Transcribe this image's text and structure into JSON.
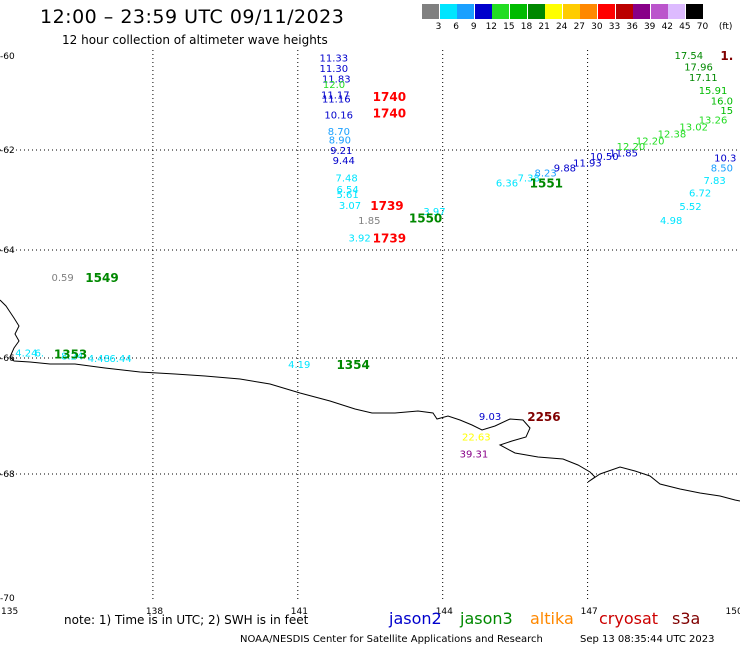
{
  "header": {
    "title": "12:00 – 23:59 UTC 09/11/2023",
    "subtitle": "12 hour collection of altimeter wave heights"
  },
  "color_scale": {
    "unit": "(ft)",
    "bins": [
      {
        "label": "3",
        "color": "#808080"
      },
      {
        "label": "6",
        "color": "#00e5ff"
      },
      {
        "label": "9",
        "color": "#1aa0ff"
      },
      {
        "label": "12",
        "color": "#0000cc"
      },
      {
        "label": "15",
        "color": "#22dd22"
      },
      {
        "label": "18",
        "color": "#00bb00"
      },
      {
        "label": "21",
        "color": "#008800"
      },
      {
        "label": "24",
        "color": "#ffff00"
      },
      {
        "label": "27",
        "color": "#ffcc00"
      },
      {
        "label": "30",
        "color": "#ff8800"
      },
      {
        "label": "33",
        "color": "#ff0000"
      },
      {
        "label": "36",
        "color": "#bb0000"
      },
      {
        "label": "39",
        "color": "#880088"
      },
      {
        "label": "42",
        "color": "#bb55cc"
      },
      {
        "label": "45",
        "color": "#ddbbff"
      },
      {
        "label": "70",
        "color": "#000000"
      }
    ]
  },
  "axes": {
    "lat_labels": [
      "-60",
      "-62",
      "-64",
      "-66",
      "-68",
      "-70"
    ],
    "lon_labels": [
      "135",
      "138",
      "141",
      "144",
      "147",
      "150"
    ]
  },
  "wave_heights": [
    {
      "v": "11.33",
      "lon": 141.45,
      "lat": -60.03,
      "c": "#0000cc"
    },
    {
      "v": "11.30",
      "lon": 141.45,
      "lat": -60.26,
      "c": "#0000cc"
    },
    {
      "v": "11.83",
      "lon": 141.5,
      "lat": -60.48,
      "c": "#0000cc"
    },
    {
      "v": "12.0",
      "lon": 141.52,
      "lat": -60.6,
      "c": "#22dd22"
    },
    {
      "v": "11.17",
      "lon": 141.48,
      "lat": -60.82,
      "c": "#0000cc"
    },
    {
      "v": "11.16",
      "lon": 141.5,
      "lat": -60.9,
      "c": "#0000cc"
    },
    {
      "v": "10.16",
      "lon": 141.55,
      "lat": -61.24,
      "c": "#0000cc"
    },
    {
      "v": "8.70",
      "lon": 141.62,
      "lat": -61.6,
      "c": "#1aa0ff"
    },
    {
      "v": "8.90",
      "lon": 141.64,
      "lat": -61.78,
      "c": "#1aa0ff"
    },
    {
      "v": "9.21",
      "lon": 141.67,
      "lat": -62.0,
      "c": "#0000cc"
    },
    {
      "v": "9.44",
      "lon": 141.72,
      "lat": -62.2,
      "c": "#0000cc"
    },
    {
      "v": "7.48",
      "lon": 141.78,
      "lat": -62.55,
      "c": "#00e5ff"
    },
    {
      "v": "6.54",
      "lon": 141.8,
      "lat": -62.78,
      "c": "#00e5ff"
    },
    {
      "v": "5.61",
      "lon": 141.8,
      "lat": -62.88,
      "c": "#00e5ff"
    },
    {
      "v": "3.07",
      "lon": 141.85,
      "lat": -63.1,
      "c": "#00e5ff"
    },
    {
      "v": "1.85",
      "lon": 142.25,
      "lat": -63.4,
      "c": "#808080"
    },
    {
      "v": "3.92",
      "lon": 142.05,
      "lat": -63.75,
      "c": "#00e5ff"
    },
    {
      "v": "3.97",
      "lon": 143.6,
      "lat": -63.22,
      "c": "#00e5ff"
    },
    {
      "v": "0.59",
      "lon": 135.9,
      "lat": -64.5,
      "c": "#808080"
    },
    {
      "v": "6.36",
      "lon": 145.1,
      "lat": -62.65,
      "c": "#00e5ff"
    },
    {
      "v": "7.38",
      "lon": 145.55,
      "lat": -62.55,
      "c": "#00e5ff"
    },
    {
      "v": "8.23",
      "lon": 145.9,
      "lat": -62.45,
      "c": "#1aa0ff"
    },
    {
      "v": "9.88",
      "lon": 146.3,
      "lat": -62.35,
      "c": "#0000cc"
    },
    {
      "v": "11.93",
      "lon": 146.7,
      "lat": -62.25,
      "c": "#0000cc"
    },
    {
      "v": "10.50",
      "lon": 147.05,
      "lat": -62.12,
      "c": "#0000cc"
    },
    {
      "v": "11.85",
      "lon": 147.45,
      "lat": -62.05,
      "c": "#0000cc"
    },
    {
      "v": "12.20",
      "lon": 147.6,
      "lat": -61.92,
      "c": "#22dd22"
    },
    {
      "v": "12.20",
      "lon": 148.0,
      "lat": -61.8,
      "c": "#22dd22"
    },
    {
      "v": "12.38",
      "lon": 148.45,
      "lat": -61.65,
      "c": "#22dd22"
    },
    {
      "v": "13.02",
      "lon": 148.9,
      "lat": -61.5,
      "c": "#22dd22"
    },
    {
      "v": "13.26",
      "lon": 149.3,
      "lat": -61.35,
      "c": "#22dd22"
    },
    {
      "v": "17.54",
      "lon": 148.8,
      "lat": -59.98,
      "c": "#008800"
    },
    {
      "v": "17.96",
      "lon": 149.0,
      "lat": -60.22,
      "c": "#008800"
    },
    {
      "v": "17.11",
      "lon": 149.1,
      "lat": -60.45,
      "c": "#008800"
    },
    {
      "v": "15.91",
      "lon": 149.3,
      "lat": -60.72,
      "c": "#00bb00"
    },
    {
      "v": "16.0",
      "lon": 149.55,
      "lat": -60.95,
      "c": "#00bb00"
    },
    {
      "v": "15",
      "lon": 149.75,
      "lat": -61.15,
      "c": "#00bb00"
    },
    {
      "v": "10.3",
      "lon": 149.62,
      "lat": -62.15,
      "c": "#0000cc"
    },
    {
      "v": "8.50",
      "lon": 149.55,
      "lat": -62.35,
      "c": "#1aa0ff"
    },
    {
      "v": "7.83",
      "lon": 149.4,
      "lat": -62.6,
      "c": "#00e5ff"
    },
    {
      "v": "6.72",
      "lon": 149.1,
      "lat": -62.85,
      "c": "#00e5ff"
    },
    {
      "v": "5.52",
      "lon": 148.9,
      "lat": -63.12,
      "c": "#00e5ff"
    },
    {
      "v": "4.98",
      "lon": 148.5,
      "lat": -63.4,
      "c": "#00e5ff"
    },
    {
      "v": "4.24",
      "lon": 135.15,
      "lat": -65.9,
      "c": "#00e5ff"
    },
    {
      "v": "6.",
      "lon": 135.55,
      "lat": -65.9,
      "c": "#00e5ff"
    },
    {
      "v": "8.24",
      "lon": 136.1,
      "lat": -65.95,
      "c": "#00e5ff"
    },
    {
      "v": "4.48",
      "lon": 136.65,
      "lat": -66.0,
      "c": "#00e5ff"
    },
    {
      "v": "6.44",
      "lon": 137.1,
      "lat": -66.0,
      "c": "#00e5ff"
    },
    {
      "v": "4.19",
      "lon": 140.8,
      "lat": -66.1,
      "c": "#00e5ff"
    },
    {
      "v": "9.03",
      "lon": 144.75,
      "lat": -67.0,
      "c": "#0000cc"
    },
    {
      "v": "22.63",
      "lon": 144.4,
      "lat": -67.35,
      "c": "#ffff00"
    },
    {
      "v": "39.31",
      "lon": 144.35,
      "lat": -67.65,
      "c": "#880088"
    }
  ],
  "passes": [
    {
      "id": "1740",
      "lon": 142.55,
      "lat": -60.85,
      "c": "#ff0000"
    },
    {
      "id": "1740",
      "lon": 142.55,
      "lat": -61.2,
      "c": "#ff0000"
    },
    {
      "id": "1739",
      "lon": 142.5,
      "lat": -63.1,
      "c": "#ff0000"
    },
    {
      "id": "1739",
      "lon": 142.55,
      "lat": -63.75,
      "c": "#ff0000"
    },
    {
      "id": "1550",
      "lon": 143.3,
      "lat": -63.35,
      "c": "#008800"
    },
    {
      "id": "1551",
      "lon": 145.8,
      "lat": -62.65,
      "c": "#008800"
    },
    {
      "id": "1549",
      "lon": 136.6,
      "lat": -64.5,
      "c": "#008800"
    },
    {
      "id": "1353",
      "lon": 135.95,
      "lat": -65.92,
      "c": "#008800"
    },
    {
      "id": "1354",
      "lon": 141.8,
      "lat": -66.1,
      "c": "#008800"
    },
    {
      "id": "2256",
      "lon": 145.75,
      "lat": -67.0,
      "c": "#800000"
    },
    {
      "id": "1.",
      "lon": 149.75,
      "lat": -59.98,
      "c": "#800000"
    }
  ],
  "legend": {
    "note": "note:  1) Time is in UTC; 2) SWH is in feet",
    "satellites": [
      {
        "name": "jason2",
        "color": "#0000cc"
      },
      {
        "name": "jason3",
        "color": "#008800"
      },
      {
        "name": "altika",
        "color": "#ff8800"
      },
      {
        "name": "cryosat",
        "color": "#cc0000"
      },
      {
        "name": "s3a",
        "color": "#800000"
      }
    ],
    "credit": "NOAA/NESDIS Center for Satellite Applications and Research",
    "timestamp": "Sep 13 08:35:44 UTC 2023"
  }
}
